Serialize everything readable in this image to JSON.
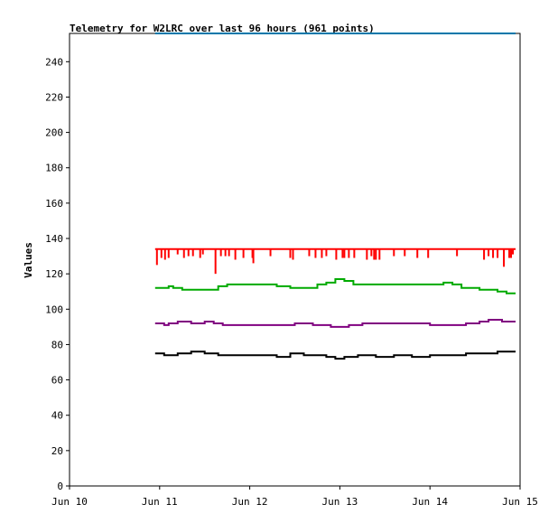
{
  "chart_data": {
    "type": "line",
    "title": "Telemetry for W2LRC over last 96 hours (961 points)",
    "xlabel": "",
    "ylabel": "Values",
    "x_ticks": [
      "Jun 10",
      "Jun 11",
      "Jun 12",
      "Jun 13",
      "Jun 14",
      "Jun 15"
    ],
    "xlim_days": [
      10,
      15
    ],
    "ylim": [
      0,
      256
    ],
    "y_ticks": [
      0,
      20,
      40,
      60,
      80,
      100,
      120,
      140,
      160,
      180,
      200,
      220,
      240
    ],
    "grid": false,
    "series": [
      {
        "color": "#ff0000",
        "baseline": 134,
        "x": [
          10.95,
          12.3,
          12.9,
          13.9,
          14.95
        ],
        "y": [
          134,
          134,
          134,
          134,
          134
        ],
        "dips": [
          {
            "x": 10.97,
            "y": 125
          },
          {
            "x": 11.02,
            "y": 129
          },
          {
            "x": 11.06,
            "y": 128
          },
          {
            "x": 11.1,
            "y": 129
          },
          {
            "x": 11.2,
            "y": 131
          },
          {
            "x": 11.27,
            "y": 129
          },
          {
            "x": 11.32,
            "y": 130
          },
          {
            "x": 11.37,
            "y": 130
          },
          {
            "x": 11.45,
            "y": 129
          },
          {
            "x": 11.48,
            "y": 131
          },
          {
            "x": 11.62,
            "y": 120
          },
          {
            "x": 11.68,
            "y": 130
          },
          {
            "x": 11.73,
            "y": 130
          },
          {
            "x": 11.77,
            "y": 130
          },
          {
            "x": 11.84,
            "y": 128
          },
          {
            "x": 11.93,
            "y": 129
          },
          {
            "x": 12.03,
            "y": 129
          },
          {
            "x": 12.04,
            "y": 126
          },
          {
            "x": 12.23,
            "y": 130
          },
          {
            "x": 12.45,
            "y": 129
          },
          {
            "x": 12.48,
            "y": 128
          },
          {
            "x": 12.66,
            "y": 130
          },
          {
            "x": 12.73,
            "y": 129
          },
          {
            "x": 12.8,
            "y": 129
          },
          {
            "x": 12.85,
            "y": 130
          },
          {
            "x": 12.96,
            "y": 128
          },
          {
            "x": 13.03,
            "y": 129
          },
          {
            "x": 13.05,
            "y": 129
          },
          {
            "x": 13.1,
            "y": 129
          },
          {
            "x": 13.16,
            "y": 129
          },
          {
            "x": 13.3,
            "y": 128
          },
          {
            "x": 13.35,
            "y": 130
          },
          {
            "x": 13.38,
            "y": 128
          },
          {
            "x": 13.4,
            "y": 128
          },
          {
            "x": 13.44,
            "y": 128
          },
          {
            "x": 13.6,
            "y": 130
          },
          {
            "x": 13.72,
            "y": 130
          },
          {
            "x": 13.86,
            "y": 129
          },
          {
            "x": 13.98,
            "y": 129
          },
          {
            "x": 14.3,
            "y": 130
          },
          {
            "x": 14.6,
            "y": 128
          },
          {
            "x": 14.65,
            "y": 130
          },
          {
            "x": 14.7,
            "y": 129
          },
          {
            "x": 14.75,
            "y": 129
          },
          {
            "x": 14.82,
            "y": 124
          },
          {
            "x": 14.88,
            "y": 129
          },
          {
            "x": 14.9,
            "y": 129
          },
          {
            "x": 14.92,
            "y": 131
          }
        ]
      },
      {
        "color": "#00aa00",
        "x": [
          10.95,
          11.1,
          11.15,
          11.25,
          11.45,
          11.55,
          11.65,
          11.75,
          11.95,
          12.15,
          12.3,
          12.45,
          12.6,
          12.75,
          12.85,
          12.95,
          13.05,
          13.15,
          13.25,
          13.45,
          13.65,
          13.85,
          14.05,
          14.15,
          14.25,
          14.35,
          14.55,
          14.75,
          14.85,
          14.95
        ],
        "y": [
          112,
          113,
          112,
          111,
          111,
          111,
          113,
          114,
          114,
          114,
          113,
          112,
          112,
          114,
          115,
          117,
          116,
          114,
          114,
          114,
          114,
          114,
          114,
          115,
          114,
          112,
          111,
          110,
          109,
          109
        ]
      },
      {
        "color": "#800080",
        "x": [
          10.95,
          11.05,
          11.1,
          11.2,
          11.35,
          11.5,
          11.6,
          11.7,
          11.85,
          12.0,
          12.2,
          12.4,
          12.5,
          12.6,
          12.7,
          12.8,
          12.9,
          13.0,
          13.1,
          13.25,
          13.5,
          13.8,
          14.0,
          14.2,
          14.4,
          14.55,
          14.65,
          14.8,
          14.95
        ],
        "y": [
          92,
          91,
          92,
          93,
          92,
          93,
          92,
          91,
          91,
          91,
          91,
          91,
          92,
          92,
          91,
          91,
          90,
          90,
          91,
          92,
          92,
          92,
          91,
          91,
          92,
          93,
          94,
          93,
          93
        ]
      },
      {
        "color": "#000000",
        "x": [
          10.95,
          11.05,
          11.2,
          11.35,
          11.5,
          11.65,
          11.8,
          12.0,
          12.15,
          12.3,
          12.45,
          12.6,
          12.75,
          12.85,
          12.95,
          13.05,
          13.2,
          13.4,
          13.6,
          13.8,
          14.0,
          14.2,
          14.4,
          14.6,
          14.75,
          14.95
        ],
        "y": [
          75,
          74,
          75,
          76,
          75,
          74,
          74,
          74,
          74,
          73,
          75,
          74,
          74,
          73,
          72,
          73,
          74,
          73,
          74,
          73,
          74,
          74,
          75,
          75,
          76,
          76
        ]
      },
      {
        "color": "#0077aa",
        "x": [
          10.95,
          14.95
        ],
        "y": [
          256,
          256
        ]
      }
    ]
  }
}
